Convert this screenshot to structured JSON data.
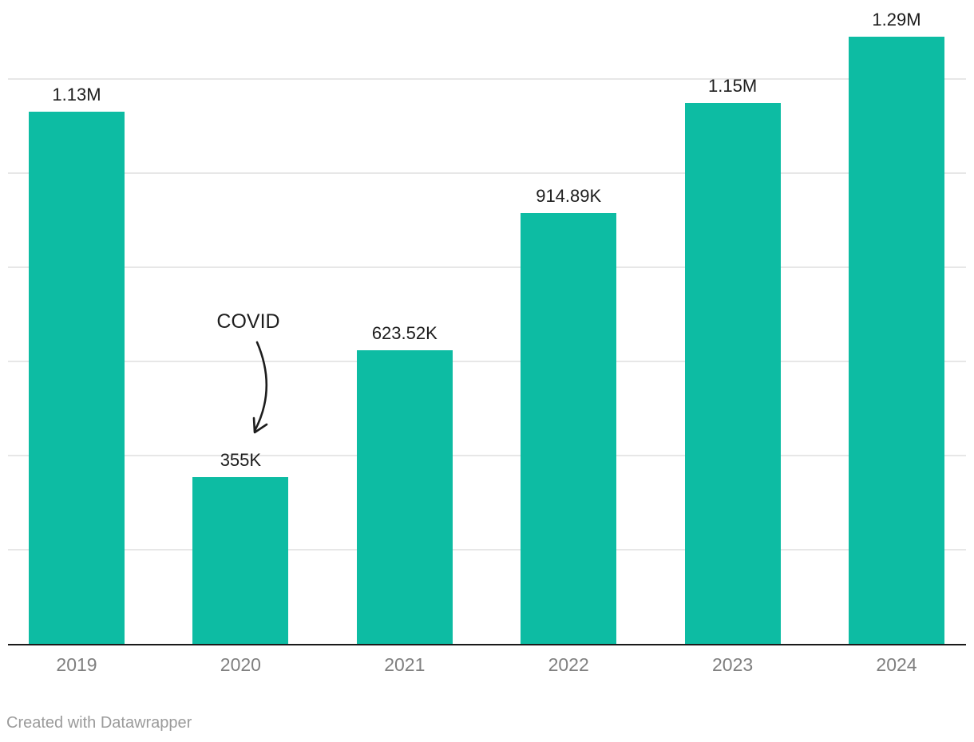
{
  "chart_data": {
    "type": "bar",
    "categories": [
      "2019",
      "2020",
      "2021",
      "2022",
      "2023",
      "2024"
    ],
    "values": [
      1130000,
      355000,
      623520,
      914890,
      1150000,
      1290000
    ],
    "value_labels": [
      "1.13M",
      "355K",
      "623.52K",
      "914.89K",
      "1.15M",
      "1.29M"
    ],
    "title": "",
    "xlabel": "",
    "ylabel": "",
    "ylim": [
      0,
      1290000
    ],
    "grid": "horizontal gridlines, unlabeled",
    "grid_interval": 200000,
    "grid_values": [
      200000,
      400000,
      600000,
      800000,
      1000000,
      1200000
    ],
    "legend": "none",
    "annotations": [
      {
        "text": "COVID",
        "target_category": "2020",
        "shape": "curved-arrow-down"
      }
    ]
  },
  "annotation": {
    "text": "COVID"
  },
  "footer": {
    "credit": "Created with Datawrapper"
  },
  "colors": {
    "bar": "#0dbca3",
    "gridline": "#e7e7e7",
    "axis_line": "#1a1a1a",
    "value_label": "#1d1d1d",
    "axis_label": "#7f7f7f",
    "annotation_text": "#1d1d1d",
    "annotation_arrow": "#1d1d1d",
    "footer_text": "#9b9b9b"
  }
}
